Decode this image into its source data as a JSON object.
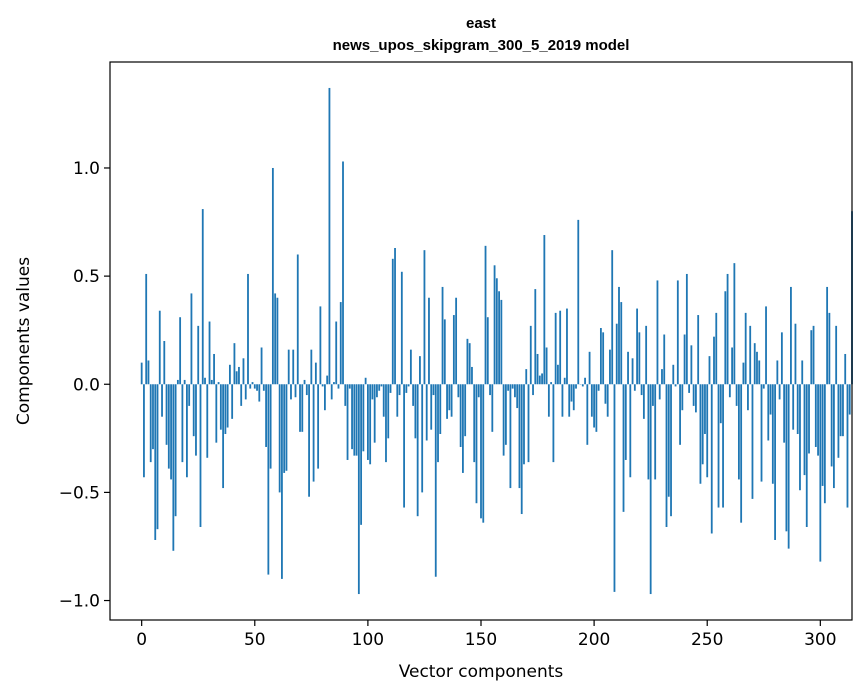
{
  "chart_data": {
    "type": "bar",
    "title_lines": [
      "east",
      "news_upos_skipgram_300_5_2019 model"
    ],
    "xlabel": "Vector components",
    "ylabel": "Components values",
    "xlim": [
      -14,
      314
    ],
    "ylim": [
      -1.09,
      1.49
    ],
    "xticks": [
      0,
      50,
      100,
      150,
      200,
      250,
      300
    ],
    "xtick_labels": [
      "0",
      "50",
      "100",
      "150",
      "200",
      "250",
      "300"
    ],
    "yticks": [
      -1.0,
      -0.5,
      0.0,
      0.5,
      1.0
    ],
    "ytick_labels": [
      "−1.0",
      "−0.5",
      "0.0",
      "0.5",
      "1.0"
    ],
    "grid": false,
    "legend": "none",
    "bar_color": "#1f77b4",
    "values": [
      0.1,
      -0.43,
      0.51,
      0.11,
      -0.36,
      -0.3,
      -0.72,
      -0.67,
      0.34,
      -0.15,
      0.2,
      -0.28,
      -0.39,
      -0.44,
      -0.77,
      -0.61,
      0.02,
      0.31,
      -0.36,
      0.02,
      -0.43,
      -0.1,
      0.42,
      -0.24,
      -0.33,
      0.27,
      -0.66,
      0.81,
      0.03,
      -0.34,
      0.29,
      0.02,
      0.14,
      -0.27,
      0.01,
      -0.21,
      -0.48,
      -0.23,
      -0.2,
      0.09,
      -0.16,
      0.19,
      0.06,
      0.08,
      -0.1,
      0.12,
      -0.07,
      0.51,
      -0.02,
      0.01,
      -0.02,
      -0.03,
      -0.08,
      0.17,
      -0.03,
      -0.29,
      -0.88,
      -0.39,
      1.0,
      0.42,
      0.4,
      -0.5,
      -0.9,
      -0.41,
      -0.4,
      0.16,
      -0.07,
      0.16,
      -0.06,
      0.6,
      -0.22,
      -0.22,
      0.02,
      -0.05,
      -0.52,
      0.16,
      -0.45,
      0.1,
      -0.39,
      0.36,
      -0.01,
      -0.12,
      0.04,
      1.37,
      -0.07,
      0.01,
      0.29,
      -0.02,
      0.38,
      1.03,
      -0.1,
      -0.35,
      -0.02,
      -0.3,
      -0.33,
      -0.33,
      -0.97,
      -0.65,
      -0.31,
      0.03,
      -0.35,
      -0.37,
      -0.07,
      -0.27,
      -0.06,
      -0.03,
      -0.01,
      -0.15,
      -0.36,
      -0.25,
      -0.04,
      0.58,
      0.63,
      -0.15,
      -0.05,
      0.52,
      -0.57,
      -0.04,
      -0.01,
      0.16,
      -0.1,
      -0.25,
      -0.61,
      0.13,
      -0.5,
      0.62,
      -0.26,
      0.4,
      -0.21,
      -0.05,
      -0.89,
      -0.36,
      -0.23,
      0.45,
      0.3,
      -0.16,
      -0.12,
      -0.15,
      0.32,
      0.4,
      -0.06,
      -0.29,
      -0.41,
      -0.24,
      0.21,
      0.19,
      0.08,
      -0.36,
      -0.55,
      -0.06,
      -0.62,
      -0.64,
      0.64,
      0.31,
      -0.05,
      -0.22,
      0.55,
      0.49,
      0.43,
      0.39,
      -0.33,
      -0.28,
      -0.03,
      -0.48,
      -0.02,
      -0.06,
      -0.11,
      -0.48,
      -0.6,
      -0.37,
      0.07,
      -0.36,
      0.27,
      -0.05,
      0.44,
      0.14,
      0.04,
      0.05,
      0.69,
      0.17,
      -0.15,
      0.01,
      -0.36,
      0.33,
      0.09,
      0.34,
      -0.15,
      0.03,
      0.35,
      -0.15,
      -0.08,
      -0.12,
      -0.02,
      0.76,
      0.0,
      -0.01,
      0.03,
      -0.28,
      0.15,
      -0.15,
      -0.2,
      -0.22,
      -0.03,
      0.26,
      0.24,
      -0.09,
      -0.15,
      0.16,
      0.62,
      -0.96,
      0.28,
      0.45,
      0.38,
      -0.59,
      -0.35,
      0.15,
      -0.43,
      0.12,
      -0.03,
      0.35,
      0.24,
      -0.05,
      -0.16,
      0.27,
      -0.44,
      -0.97,
      -0.1,
      -0.44,
      0.48,
      -0.07,
      0.07,
      0.23,
      -0.66,
      -0.52,
      -0.61,
      0.09,
      -0.01,
      0.48,
      -0.28,
      -0.12,
      0.23,
      0.51,
      -0.04,
      0.18,
      -0.1,
      -0.13,
      0.32,
      -0.46,
      -0.37,
      -0.23,
      -0.43,
      0.13,
      -0.69,
      0.22,
      0.33,
      -0.57,
      -0.18,
      -0.57,
      0.43,
      0.51,
      -0.06,
      0.17,
      0.56,
      -0.1,
      -0.44,
      -0.64,
      0.1,
      0.33,
      -0.12,
      0.27,
      -0.53,
      0.19,
      0.15,
      0.11,
      -0.45,
      -0.02,
      0.36,
      -0.26,
      -0.14,
      -0.46,
      -0.72,
      0.11,
      -0.07,
      0.24,
      -0.27,
      -0.68,
      -0.76,
      0.45,
      -0.21,
      0.28,
      -0.23,
      -0.49,
      0.11,
      -0.42,
      -0.66,
      -0.32,
      0.25,
      0.27,
      -0.29,
      -0.33,
      -0.82,
      -0.47,
      -0.55,
      0.45,
      0.33,
      -0.38,
      -0.48,
      0.27,
      -0.34,
      -0.24,
      -0.24,
      0.14,
      -0.57,
      -0.14,
      0.8
    ]
  }
}
